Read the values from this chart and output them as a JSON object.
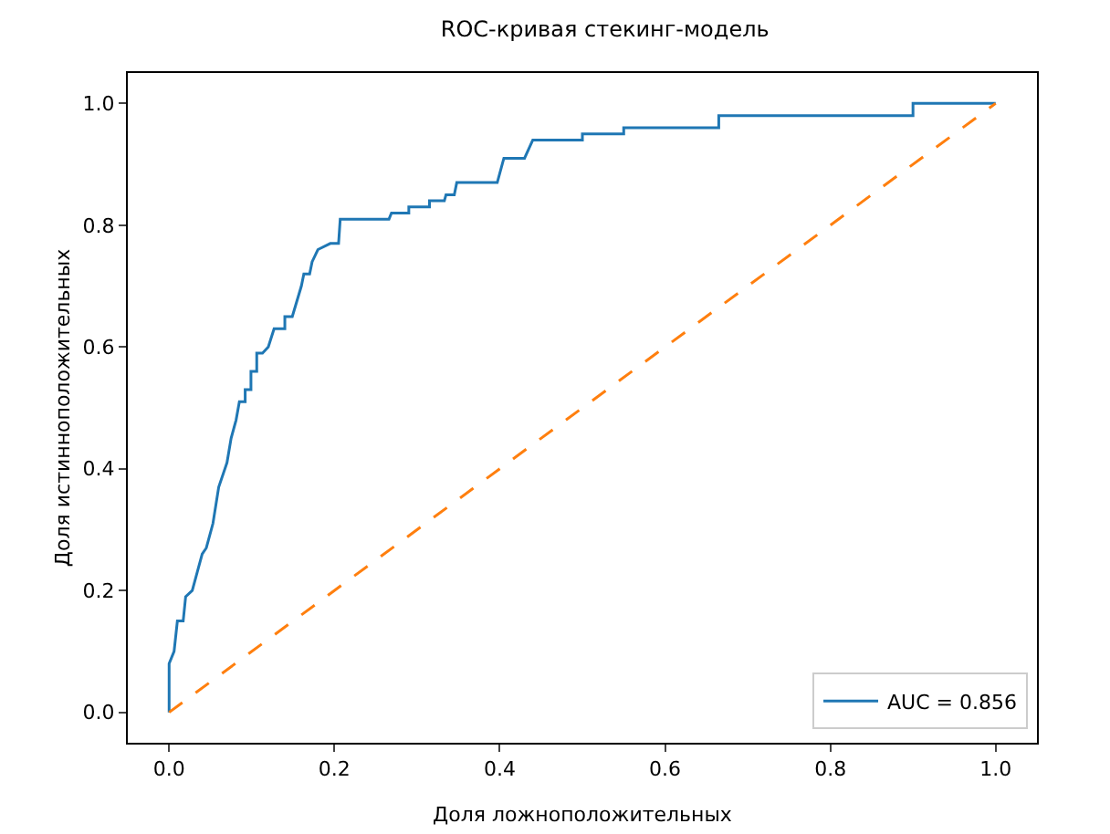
{
  "chart_data": {
    "type": "line",
    "title": "ROC-кривая стекинг-модель",
    "xlabel": "Доля ложноположительных",
    "ylabel": "Доля истинноположительных",
    "xlim": [
      -0.05,
      1.05
    ],
    "ylim": [
      -0.05,
      1.05
    ],
    "xticks": [
      {
        "value": 0,
        "label": "0.0"
      },
      {
        "value": 0.2,
        "label": "0.2"
      },
      {
        "value": 0.4,
        "label": "0.4"
      },
      {
        "value": 0.6,
        "label": "0.6"
      },
      {
        "value": 0.8,
        "label": "0.8"
      },
      {
        "value": 1,
        "label": "1.0"
      }
    ],
    "yticks": [
      {
        "value": 0,
        "label": "0.0"
      },
      {
        "value": 0.2,
        "label": "0.2"
      },
      {
        "value": 0.4,
        "label": "0.4"
      },
      {
        "value": 0.6,
        "label": "0.6"
      },
      {
        "value": 0.8,
        "label": "0.8"
      },
      {
        "value": 1,
        "label": "1.0"
      }
    ],
    "grid": false,
    "legend": "bottom right",
    "marker": "none",
    "series": [
      {
        "name": "AUC = 0.856",
        "color": "#1f77b4",
        "line_style": "solid",
        "x": [
          0,
          0,
          0.006,
          0.01,
          0.017,
          0.02,
          0.028,
          0.034,
          0.04,
          0.045,
          0.053,
          0.06,
          0.07,
          0.075,
          0.081,
          0.085,
          0.092,
          0.092,
          0.099,
          0.099,
          0.106,
          0.106,
          0.113,
          0.12,
          0.127,
          0.14,
          0.14,
          0.149,
          0.16,
          0.163,
          0.17,
          0.173,
          0.18,
          0.195,
          0.205,
          0.207,
          0.266,
          0.269,
          0.29,
          0.29,
          0.315,
          0.315,
          0.333,
          0.335,
          0.345,
          0.348,
          0.397,
          0.405,
          0.43,
          0.44,
          0.5,
          0.5,
          0.55,
          0.55,
          0.665,
          0.665,
          0.9,
          0.9,
          1
        ],
        "values": [
          0,
          0.08,
          0.1,
          0.15,
          0.15,
          0.19,
          0.2,
          0.23,
          0.26,
          0.27,
          0.31,
          0.37,
          0.41,
          0.45,
          0.48,
          0.51,
          0.51,
          0.53,
          0.53,
          0.56,
          0.56,
          0.59,
          0.59,
          0.6,
          0.63,
          0.63,
          0.65,
          0.65,
          0.7,
          0.72,
          0.72,
          0.74,
          0.76,
          0.77,
          0.77,
          0.81,
          0.81,
          0.82,
          0.82,
          0.83,
          0.83,
          0.84,
          0.84,
          0.85,
          0.85,
          0.87,
          0.87,
          0.91,
          0.91,
          0.94,
          0.94,
          0.95,
          0.95,
          0.96,
          0.96,
          0.98,
          0.98,
          1,
          1
        ]
      },
      {
        "color": "#ff7f0e",
        "line_style": "dashed",
        "x": [
          0,
          1
        ],
        "values": [
          0,
          1
        ]
      }
    ]
  }
}
